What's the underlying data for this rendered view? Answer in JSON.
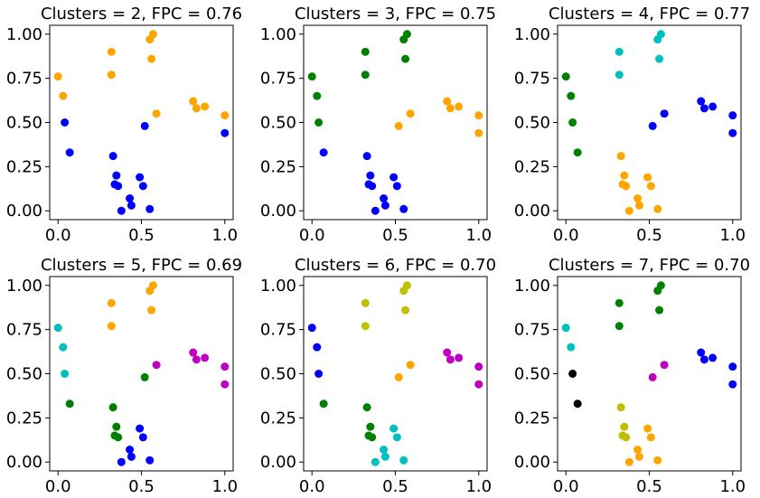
{
  "colors": {
    "b": "#0000ff",
    "g": "#008000",
    "orange": "#ffa500",
    "c": "#00bfbf",
    "m": "#bf00bf",
    "y": "#bfbf00",
    "k": "#000000"
  },
  "points": {
    "x": [
      0.0,
      0.03,
      0.04,
      0.07,
      0.32,
      0.32,
      0.55,
      0.57,
      0.59,
      0.56,
      0.81,
      0.83,
      0.88,
      1.0,
      1.0,
      0.33,
      0.35,
      0.36,
      0.34,
      0.38,
      0.43,
      0.44,
      0.49,
      0.51,
      0.55,
      0.52
    ],
    "y": [
      0.76,
      0.65,
      0.5,
      0.33,
      0.9,
      0.77,
      0.97,
      1.0,
      0.55,
      0.86,
      0.62,
      0.58,
      0.59,
      0.54,
      0.44,
      0.31,
      0.2,
      0.14,
      0.15,
      0.0,
      0.07,
      0.03,
      0.19,
      0.14,
      0.01,
      0.48
    ]
  },
  "chart_data": [
    {
      "type": "scatter",
      "title": "Clusters = 2, FPC = 0.76",
      "xlim": [
        -0.05,
        1.05
      ],
      "ylim": [
        -0.05,
        1.05
      ],
      "xticks": [
        "0.0",
        "0.5",
        "1.0"
      ],
      "yticks": [
        "0.00",
        "0.25",
        "0.50",
        "0.75",
        "1.00"
      ],
      "labels": [
        "orange",
        "orange",
        "b",
        "b",
        "orange",
        "orange",
        "orange",
        "orange",
        "orange",
        "orange",
        "orange",
        "orange",
        "orange",
        "orange",
        "b",
        "b",
        "b",
        "b",
        "b",
        "b",
        "b",
        "b",
        "b",
        "b",
        "b",
        "b"
      ]
    },
    {
      "type": "scatter",
      "title": "Clusters = 3, FPC = 0.75",
      "xlim": [
        -0.05,
        1.05
      ],
      "ylim": [
        -0.05,
        1.05
      ],
      "xticks": [
        "0.0",
        "0.5",
        "1.0"
      ],
      "yticks": [
        "0.00",
        "0.25",
        "0.50",
        "0.75",
        "1.00"
      ],
      "labels": [
        "g",
        "g",
        "g",
        "b",
        "g",
        "g",
        "g",
        "g",
        "orange",
        "g",
        "orange",
        "orange",
        "orange",
        "orange",
        "orange",
        "b",
        "b",
        "b",
        "b",
        "b",
        "b",
        "b",
        "b",
        "b",
        "b",
        "orange"
      ]
    },
    {
      "type": "scatter",
      "title": "Clusters = 4, FPC = 0.77",
      "xlim": [
        -0.05,
        1.05
      ],
      "ylim": [
        -0.05,
        1.05
      ],
      "xticks": [
        "0.0",
        "0.5",
        "1.0"
      ],
      "yticks": [
        "0.00",
        "0.25",
        "0.50",
        "0.75",
        "1.00"
      ],
      "labels": [
        "g",
        "g",
        "g",
        "g",
        "c",
        "c",
        "c",
        "c",
        "b",
        "c",
        "b",
        "b",
        "b",
        "b",
        "b",
        "orange",
        "orange",
        "orange",
        "orange",
        "orange",
        "orange",
        "orange",
        "orange",
        "orange",
        "orange",
        "b"
      ]
    },
    {
      "type": "scatter",
      "title": "Clusters = 5, FPC = 0.69",
      "xlim": [
        -0.05,
        1.05
      ],
      "ylim": [
        -0.05,
        1.05
      ],
      "xticks": [
        "0.0",
        "0.5",
        "1.0"
      ],
      "yticks": [
        "0.00",
        "0.25",
        "0.50",
        "0.75",
        "1.00"
      ],
      "labels": [
        "c",
        "c",
        "c",
        "g",
        "orange",
        "orange",
        "orange",
        "orange",
        "m",
        "orange",
        "m",
        "m",
        "m",
        "m",
        "m",
        "g",
        "g",
        "g",
        "g",
        "b",
        "b",
        "b",
        "b",
        "b",
        "b",
        "g"
      ]
    },
    {
      "type": "scatter",
      "title": "Clusters = 6, FPC = 0.70",
      "xlim": [
        -0.05,
        1.05
      ],
      "ylim": [
        -0.05,
        1.05
      ],
      "xticks": [
        "0.0",
        "0.5",
        "1.0"
      ],
      "yticks": [
        "0.00",
        "0.25",
        "0.50",
        "0.75",
        "1.00"
      ],
      "labels": [
        "b",
        "b",
        "b",
        "g",
        "y",
        "y",
        "y",
        "y",
        "orange",
        "y",
        "m",
        "m",
        "m",
        "m",
        "m",
        "g",
        "g",
        "g",
        "g",
        "c",
        "c",
        "c",
        "c",
        "c",
        "c",
        "orange"
      ]
    },
    {
      "type": "scatter",
      "title": "Clusters = 7, FPC = 0.70",
      "xlim": [
        -0.05,
        1.05
      ],
      "ylim": [
        -0.05,
        1.05
      ],
      "xticks": [
        "0.0",
        "0.5",
        "1.0"
      ],
      "yticks": [
        "0.00",
        "0.25",
        "0.50",
        "0.75",
        "1.00"
      ],
      "labels": [
        "c",
        "c",
        "k",
        "k",
        "g",
        "g",
        "g",
        "g",
        "m",
        "g",
        "b",
        "b",
        "b",
        "b",
        "b",
        "y",
        "y",
        "y",
        "y",
        "orange",
        "orange",
        "orange",
        "orange",
        "orange",
        "orange",
        "m"
      ]
    }
  ]
}
